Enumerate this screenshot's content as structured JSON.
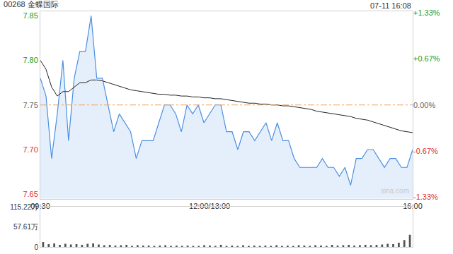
{
  "chart_data": [
    {
      "type": "line",
      "title": "00268 金蝶国际",
      "annotations": [
        "07-11 16:08",
        "sina.com"
      ],
      "categories": [
        "09:30",
        null,
        null,
        null,
        null,
        null,
        null,
        null,
        null,
        null,
        null,
        null,
        null,
        null,
        null,
        null,
        null,
        null,
        null,
        null,
        null,
        null,
        null,
        null,
        null,
        null,
        null,
        null,
        null,
        null,
        "12:00/13:00",
        null,
        null,
        null,
        null,
        null,
        null,
        null,
        null,
        null,
        null,
        null,
        null,
        null,
        null,
        null,
        null,
        null,
        null,
        null,
        null,
        null,
        null,
        null,
        null,
        null,
        null,
        null,
        null,
        null,
        null,
        null,
        null,
        null,
        null,
        null,
        "16:00"
      ],
      "series": [
        {
          "type": "area",
          "color": "#4a90e2",
          "values": [
            7.78,
            7.76,
            7.69,
            7.74,
            7.8,
            7.71,
            7.78,
            7.81,
            7.81,
            7.85,
            7.78,
            7.78,
            7.75,
            7.72,
            7.74,
            7.73,
            7.72,
            7.69,
            7.71,
            7.71,
            7.71,
            7.73,
            7.75,
            7.75,
            7.74,
            7.72,
            7.75,
            7.74,
            7.75,
            7.73,
            7.74,
            7.75,
            7.75,
            7.72,
            7.72,
            7.7,
            7.72,
            7.72,
            7.71,
            7.72,
            7.73,
            7.71,
            7.73,
            7.71,
            7.71,
            7.69,
            7.68,
            7.68,
            7.68,
            7.68,
            7.69,
            7.68,
            7.68,
            7.67,
            7.68,
            7.66,
            7.69,
            7.69,
            7.7,
            7.7,
            7.69,
            7.68,
            7.69,
            7.69,
            7.68,
            7.68,
            7.7
          ]
        },
        {
          "type": "line",
          "color": "#222222",
          "values": [
            7.8,
            7.79,
            7.77,
            7.76,
            7.765,
            7.765,
            7.77,
            7.775,
            7.775,
            7.778,
            7.778,
            7.777,
            7.775,
            7.773,
            7.771,
            7.769,
            7.767,
            7.766,
            7.765,
            7.764,
            7.763,
            7.762,
            7.762,
            7.761,
            7.761,
            7.76,
            7.76,
            7.759,
            7.759,
            7.758,
            7.758,
            7.757,
            7.757,
            7.756,
            7.755,
            7.754,
            7.753,
            7.752,
            7.752,
            7.751,
            7.751,
            7.75,
            7.75,
            7.749,
            7.749,
            7.748,
            7.747,
            7.746,
            7.745,
            7.743,
            7.742,
            7.741,
            7.74,
            7.739,
            7.738,
            7.737,
            7.735,
            7.734,
            7.733,
            7.731,
            7.729,
            7.727,
            7.725,
            7.723,
            7.721,
            7.72,
            7.719
          ]
        }
      ],
      "prev_close": 7.75,
      "ylim": [
        7.645,
        7.855
      ],
      "yticks": [
        7.85,
        {
          "value": 7.8,
          "label": "7.80"
        },
        7.75,
        {
          "value": 7.7,
          "label": "7.70"
        },
        7.65
      ],
      "y2lim": [
        -1.355,
        1.355
      ],
      "y2ticks": [
        {
          "value": 1.33,
          "label": "+1.33%"
        },
        {
          "value": 0.67,
          "label": "+0.67%"
        },
        {
          "value": 0,
          "label": "0.00%"
        },
        {
          "value": -0.67,
          "label": "-0.67%"
        },
        {
          "value": -1.33,
          "label": "-1.33%"
        }
      ],
      "grid": false
    },
    {
      "type": "bar",
      "categories": [
        "09:30",
        null,
        null,
        null,
        null,
        null,
        null,
        null,
        null,
        null,
        null,
        null,
        null,
        null,
        null,
        null,
        null,
        null,
        null,
        null,
        null,
        null,
        null,
        null,
        null,
        null,
        null,
        null,
        null,
        null,
        "12:00/13:00",
        null,
        null,
        null,
        null,
        null,
        null,
        null,
        null,
        null,
        null,
        null,
        null,
        null,
        null,
        null,
        null,
        null,
        null,
        null,
        null,
        null,
        null,
        null,
        null,
        null,
        null,
        null,
        null,
        null,
        null,
        null,
        null,
        null,
        null,
        null,
        "16:00"
      ],
      "color": "#555555",
      "values": [
        14,
        8,
        10,
        6,
        9,
        7,
        8,
        6,
        9,
        10,
        7,
        5,
        6,
        4,
        5,
        6,
        3,
        5,
        4,
        4,
        3,
        4,
        5,
        3,
        4,
        3,
        4,
        3,
        3,
        5,
        4,
        3,
        6,
        3,
        4,
        3,
        5,
        3,
        4,
        3,
        4,
        3,
        5,
        3,
        4,
        3,
        5,
        4,
        3,
        5,
        4,
        3,
        6,
        4,
        5,
        6,
        4,
        5,
        6,
        5,
        6,
        7,
        9,
        8,
        12,
        20,
        35
      ],
      "ylim": [
        0,
        115.22
      ],
      "yticks": [
        0,
        {
          "value": 57.61,
          "label": "57.61万"
        },
        {
          "value": 115.22,
          "label": "115.22万"
        }
      ],
      "tick_labels": "y",
      "grid": false
    }
  ]
}
